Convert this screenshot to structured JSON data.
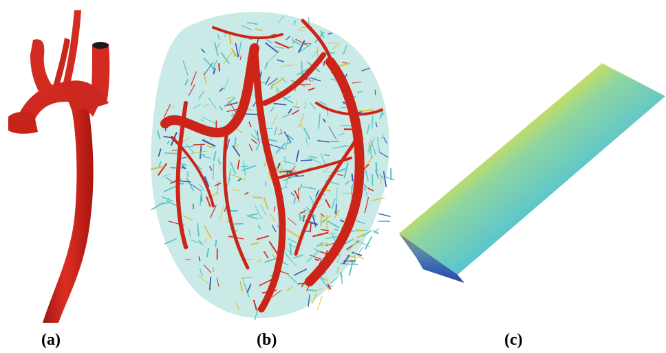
{
  "figure": {
    "panels": [
      {
        "label": "(a)",
        "depiction": "aorta-vessel"
      },
      {
        "label": "(b)",
        "depiction": "coronary-vascular-network"
      },
      {
        "label": "(c)",
        "depiction": "colored-block-segment"
      }
    ],
    "colors": {
      "vessel": "#d42a22",
      "vessel_dark": "#8e1410",
      "network_cyan": "#5ec6c2",
      "network_yellow": "#d9c23a",
      "network_blue": "#3a59b0",
      "gradient": [
        "#d62a1e",
        "#f08a24",
        "#f5e22a",
        "#8fd6a0",
        "#5cc6cc",
        "#2f8fc4",
        "#2a3a9a"
      ]
    }
  }
}
